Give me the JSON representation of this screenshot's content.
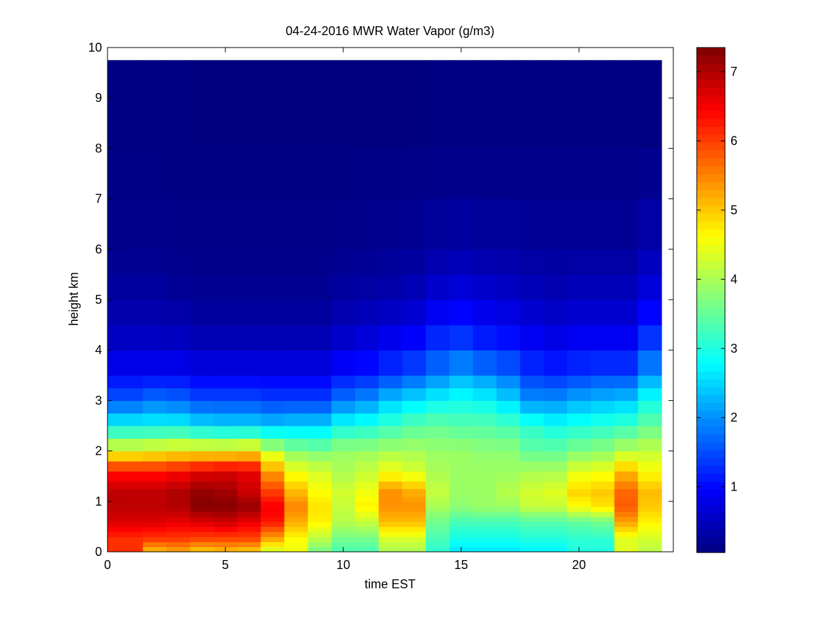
{
  "chart_data": {
    "type": "heatmap",
    "title": "04-24-2016 MWR Water Vapor (g/m3)",
    "xlabel": "time EST",
    "ylabel": "height km",
    "xlim": [
      0,
      24
    ],
    "ylim": [
      0,
      10
    ],
    "x_ticks": [
      0,
      5,
      10,
      15,
      20
    ],
    "y_ticks": [
      0,
      1,
      2,
      3,
      4,
      5,
      6,
      7,
      8,
      9,
      10
    ],
    "colorbar": {
      "colormap": "jet",
      "range": [
        0.05,
        7.35
      ],
      "ticks": [
        1,
        2,
        3,
        4,
        5,
        6,
        7
      ]
    },
    "data_extent": {
      "x": [
        0,
        23.5
      ],
      "y": [
        0,
        9.75
      ]
    },
    "hours": [
      0,
      1,
      2,
      3,
      4,
      5,
      6,
      7,
      8,
      9,
      10,
      11,
      12,
      13,
      14,
      15,
      16,
      17,
      18,
      19,
      20,
      21,
      22,
      23
    ],
    "levels_km": [
      0,
      0.1,
      0.2,
      0.3,
      0.4,
      0.5,
      0.6,
      0.7,
      0.8,
      0.9,
      1.0,
      1.1,
      1.25,
      1.4,
      1.6,
      1.8,
      2.0,
      2.25,
      2.5,
      2.75,
      3.0,
      3.25,
      3.5,
      4.0,
      4.5,
      5.0,
      5.5,
      6.0,
      7.0,
      8.0,
      10.0
    ],
    "profiles": {
      "heights_km": [
        0,
        0.25,
        0.6,
        0.9,
        1.2,
        1.6,
        2.0,
        2.5,
        3.0,
        3.5,
        4.0,
        5.0,
        6.0,
        8.0,
        10.0
      ],
      "values": [
        [
          6.1,
          6.1,
          6.7,
          6.9,
          6.9,
          6.3,
          4.5,
          2.8,
          1.6,
          1.0,
          0.6,
          0.3,
          0.15,
          0.08,
          0.05
        ],
        [
          6.1,
          6.1,
          6.7,
          6.9,
          6.9,
          6.3,
          4.5,
          2.8,
          1.6,
          1.0,
          0.6,
          0.3,
          0.15,
          0.08,
          0.05
        ],
        [
          5.0,
          6.0,
          6.7,
          6.9,
          6.9,
          6.3,
          4.6,
          2.8,
          1.8,
          1.0,
          0.6,
          0.3,
          0.15,
          0.08,
          0.05
        ],
        [
          5.2,
          6.0,
          6.6,
          7.0,
          7.0,
          6.4,
          4.7,
          2.8,
          1.7,
          1.0,
          0.6,
          0.25,
          0.13,
          0.08,
          0.05
        ],
        [
          4.9,
          5.9,
          6.7,
          7.3,
          7.2,
          6.6,
          4.7,
          2.6,
          1.5,
          0.9,
          0.5,
          0.2,
          0.12,
          0.07,
          0.05
        ],
        [
          5.0,
          5.9,
          6.8,
          7.3,
          7.1,
          6.7,
          4.7,
          2.5,
          1.5,
          0.9,
          0.5,
          0.2,
          0.12,
          0.07,
          0.05
        ],
        [
          4.9,
          5.9,
          6.6,
          7.2,
          6.8,
          6.6,
          4.8,
          2.5,
          1.5,
          0.9,
          0.5,
          0.2,
          0.12,
          0.07,
          0.05
        ],
        [
          4.2,
          5.2,
          6.3,
          6.5,
          6.0,
          5.3,
          4.2,
          2.4,
          1.4,
          0.9,
          0.5,
          0.2,
          0.12,
          0.07,
          0.05
        ],
        [
          4.5,
          4.6,
          5.2,
          5.5,
          5.1,
          4.5,
          3.8,
          2.5,
          1.4,
          0.9,
          0.5,
          0.2,
          0.12,
          0.07,
          0.05
        ],
        [
          3.6,
          4.1,
          4.7,
          4.8,
          4.6,
          4.3,
          3.7,
          2.5,
          1.4,
          0.9,
          0.5,
          0.2,
          0.12,
          0.07,
          0.05
        ],
        [
          3.3,
          3.6,
          4.1,
          4.2,
          4.3,
          4.0,
          3.9,
          2.9,
          1.8,
          1.1,
          0.7,
          0.3,
          0.15,
          0.07,
          0.05
        ],
        [
          3.3,
          3.6,
          4.2,
          4.7,
          4.5,
          4.2,
          3.9,
          3.0,
          2.0,
          1.2,
          0.8,
          0.35,
          0.17,
          0.07,
          0.05
        ],
        [
          4.0,
          4.3,
          5.1,
          5.4,
          5.4,
          4.5,
          4.0,
          3.2,
          2.4,
          1.4,
          1.0,
          0.4,
          0.2,
          0.07,
          0.05
        ],
        [
          4.0,
          4.3,
          5.1,
          5.4,
          5.2,
          4.3,
          4.0,
          3.4,
          2.6,
          1.6,
          1.1,
          0.5,
          0.22,
          0.07,
          0.05
        ],
        [
          3.1,
          3.3,
          3.6,
          4.0,
          4.2,
          4.0,
          3.9,
          3.5,
          2.8,
          1.9,
          1.4,
          0.7,
          0.3,
          0.08,
          0.05
        ],
        [
          2.6,
          2.9,
          3.3,
          3.8,
          3.9,
          3.9,
          3.9,
          3.4,
          2.9,
          2.2,
          1.5,
          0.8,
          0.35,
          0.08,
          0.05
        ],
        [
          2.6,
          2.9,
          3.3,
          3.9,
          3.9,
          3.9,
          3.8,
          3.4,
          2.8,
          2.0,
          1.3,
          0.7,
          0.3,
          0.08,
          0.05
        ],
        [
          2.6,
          2.9,
          3.3,
          3.9,
          4.1,
          3.9,
          3.8,
          3.3,
          2.5,
          1.8,
          1.2,
          0.6,
          0.3,
          0.08,
          0.05
        ],
        [
          2.7,
          3.0,
          3.4,
          4.2,
          4.3,
          4.0,
          3.5,
          3.1,
          2.0,
          1.4,
          1.0,
          0.5,
          0.25,
          0.08,
          0.05
        ],
        [
          2.7,
          3.0,
          3.4,
          4.2,
          4.4,
          4.0,
          3.5,
          2.9,
          2.0,
          1.3,
          0.9,
          0.45,
          0.25,
          0.08,
          0.05
        ],
        [
          3.0,
          3.1,
          3.5,
          4.6,
          4.9,
          4.4,
          3.7,
          3.0,
          2.2,
          1.4,
          1.0,
          0.5,
          0.25,
          0.08,
          0.05
        ],
        [
          3.0,
          3.1,
          3.6,
          4.8,
          5.0,
          4.5,
          3.8,
          3.1,
          2.3,
          1.5,
          1.0,
          0.5,
          0.25,
          0.08,
          0.05
        ],
        [
          4.4,
          4.4,
          5.3,
          5.8,
          5.7,
          5.1,
          4.1,
          3.2,
          2.4,
          1.5,
          1.0,
          0.5,
          0.25,
          0.08,
          0.05
        ],
        [
          4.1,
          4.3,
          4.7,
          5.0,
          5.1,
          4.6,
          4.2,
          3.5,
          2.9,
          2.1,
          1.5,
          0.8,
          0.4,
          0.1,
          0.05
        ]
      ]
    }
  }
}
